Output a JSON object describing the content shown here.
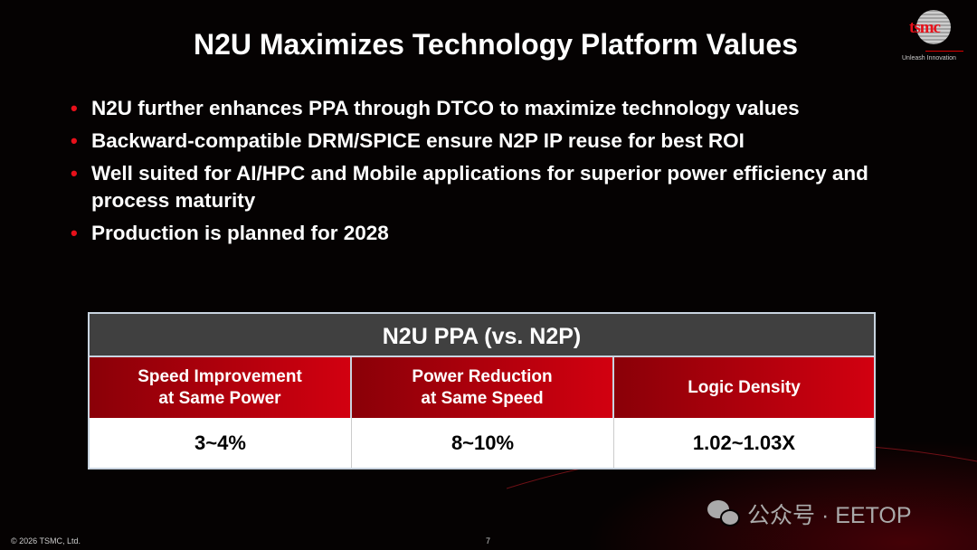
{
  "slide": {
    "title": "N2U Maximizes Technology Platform Values",
    "bullets": [
      "N2U further enhances PPA through DTCO to maximize technology values",
      "Backward-compatible DRM/SPICE ensure N2P IP reuse for best ROI",
      "Well suited for AI/HPC and Mobile applications for superior power efficiency and process maturity",
      "Production is planned for 2028"
    ],
    "table": {
      "title": "N2U PPA (vs. N2P)",
      "headers": [
        "Speed Improvement\nat Same Power",
        "Power Reduction\nat Same Speed",
        "Logic Density"
      ],
      "values": [
        "3~4%",
        "8~10%",
        "1.02~1.03X"
      ]
    },
    "footer": {
      "copyright": "© 2026 TSMC, Ltd.",
      "page": "7"
    }
  },
  "logo": {
    "name": "tsmc",
    "tagline": "Unleash Innovation"
  },
  "watermark": {
    "text": "公众号 · EETOP",
    "icon": "wechat-icon"
  },
  "colors": {
    "accent": "#e8101a",
    "header_bg": "#404040"
  }
}
